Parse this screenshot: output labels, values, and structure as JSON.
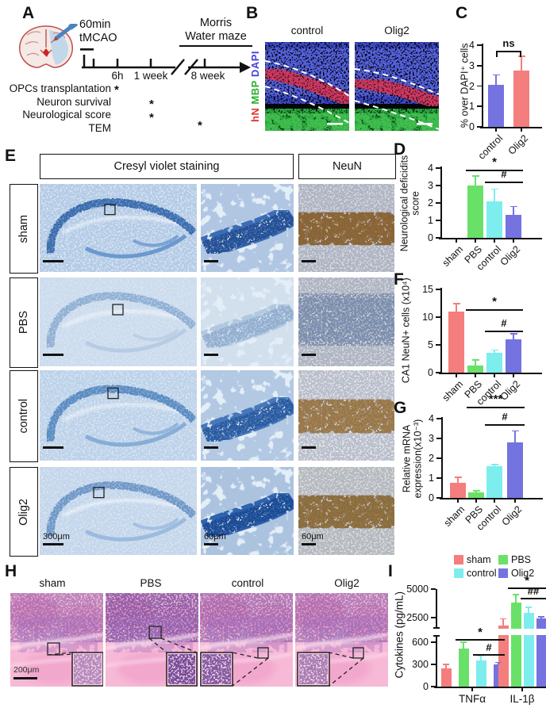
{
  "colors": {
    "sham": "#F47E7E",
    "PBS": "#69E169",
    "control": "#7DEDED",
    "Olig2": "#7473E0",
    "axis": "#111111"
  },
  "panelA": {
    "label": "A",
    "tmcao_line1": "60min",
    "tmcao_line2": "tMCAO",
    "tick6h": "6h",
    "tick1w": "1 week",
    "tick8w": "8 week",
    "maze1": "Morris",
    "maze2": "Water maze",
    "rows": [
      "OPCs transplantation",
      "Neuron survival",
      "Neurological score",
      "TEM"
    ],
    "star": "*"
  },
  "panelB": {
    "label": "B",
    "titles": [
      "control",
      "Olig2"
    ],
    "stains": [
      {
        "text": "hN",
        "color": "#e03535"
      },
      {
        "text": "MBP",
        "color": "#2bb02b"
      },
      {
        "text": "DAPI",
        "color": "#4343dd"
      }
    ]
  },
  "panelE": {
    "label": "E",
    "headers": [
      "Cresyl violet staining",
      "NeuN"
    ],
    "rows": [
      "sham",
      "PBS",
      "control",
      "Olig2"
    ],
    "scalebars": [
      "300μm",
      "60μm",
      "60μm"
    ]
  },
  "panelH": {
    "label": "H",
    "titles": [
      "sham",
      "PBS",
      "control",
      "Olig2"
    ],
    "scalebar": "200μm"
  },
  "panelLabels": {
    "C": "C",
    "D": "D",
    "F": "F",
    "G": "G",
    "I": "I"
  },
  "chart_data": [
    {
      "id": "C",
      "type": "bar",
      "ylabel": [
        "% over DAPI⁺ cells"
      ],
      "ylim": [
        0,
        4
      ],
      "yticks": [
        0,
        1,
        2,
        3,
        4
      ],
      "categories": [
        "control",
        "Olig2"
      ],
      "values": [
        2.05,
        2.75
      ],
      "errors": [
        0.5,
        0.7
      ],
      "colors": [
        "#7473E0",
        "#F47E7E"
      ],
      "sigs": [
        {
          "label": "ns",
          "from": 0,
          "to": 1,
          "bracket": true
        }
      ]
    },
    {
      "id": "D",
      "type": "bar",
      "ylabel": [
        "Neurological deficidits",
        "score"
      ],
      "ylim": [
        0,
        4
      ],
      "yticks": [
        0,
        1,
        2,
        3,
        4
      ],
      "categories": [
        "sham",
        "PBS",
        "control",
        "Olig2"
      ],
      "values": [
        0,
        3.0,
        2.1,
        1.3
      ],
      "errors": [
        0,
        0.55,
        0.7,
        0.5
      ],
      "colors": [
        "#F47E7E",
        "#69E169",
        "#7DEDED",
        "#7473E0"
      ],
      "sigs": [
        {
          "label": "*",
          "from": 1,
          "to": 3
        },
        {
          "label": "#",
          "from": 2,
          "to": 3
        }
      ]
    },
    {
      "id": "F",
      "type": "bar",
      "ylabel": [
        "CA1 NeuN+ cells (x10⁴)"
      ],
      "ylim": [
        0,
        15
      ],
      "yticks": [
        0,
        5,
        10,
        15
      ],
      "categories": [
        "sham",
        "PBS",
        "control",
        "Olig2"
      ],
      "values": [
        11,
        1.3,
        3.6,
        6.0
      ],
      "errors": [
        1.4,
        1.0,
        0.45,
        1.0
      ],
      "colors": [
        "#F47E7E",
        "#69E169",
        "#7DEDED",
        "#7473E0"
      ],
      "sigs": [
        {
          "label": "*",
          "from": 1,
          "to": 3
        },
        {
          "label": "#",
          "from": 2,
          "to": 3
        }
      ]
    },
    {
      "id": "G",
      "type": "bar",
      "ylabel": [
        "Relative mRNA",
        "expression(x10⁻³)"
      ],
      "ylim": [
        0,
        4
      ],
      "yticks": [
        0,
        1,
        2,
        3,
        4
      ],
      "categories": [
        "sham",
        "PBS",
        "control",
        "Olig2"
      ],
      "values": [
        0.78,
        0.28,
        1.6,
        2.8
      ],
      "errors": [
        0.27,
        0.08,
        0.08,
        0.58
      ],
      "colors": [
        "#F47E7E",
        "#69E169",
        "#7DEDED",
        "#7473E0"
      ],
      "sigs": [
        {
          "label": "***",
          "from": 1,
          "to": 3
        },
        {
          "label": "#",
          "from": 2,
          "to": 3
        }
      ]
    },
    {
      "id": "I",
      "type": "grouped-bar-broken-axis",
      "ylabel": [
        "Cytokines (pg/mL)"
      ],
      "groups": [
        "TNFα",
        "IL-1β"
      ],
      "series": [
        "sham",
        "PBS",
        "control",
        "Olig2"
      ],
      "colors": [
        "#F47E7E",
        "#69E169",
        "#7DEDED",
        "#7473E0"
      ],
      "values": [
        [
          245,
          515,
          350,
          295
        ],
        [
          1900,
          3850,
          2900,
          2450
        ]
      ],
      "errors": [
        [
          55,
          85,
          70,
          30
        ],
        [
          500,
          650,
          500,
          100
        ]
      ],
      "axis_lower": {
        "lim": [
          0,
          600
        ],
        "ticks": [
          0,
          300,
          600
        ]
      },
      "axis_upper": {
        "lim": [
          2500,
          5000
        ],
        "ticks": [
          2500,
          5000
        ]
      },
      "legend": [
        {
          "label": "sham",
          "color": "#F47E7E"
        },
        {
          "label": "PBS",
          "color": "#69E169"
        },
        {
          "label": "control",
          "color": "#7DEDED"
        },
        {
          "label": "Olig2",
          "color": "#7473E0"
        }
      ],
      "sigs": [
        [
          {
            "label": "*",
            "from": 1,
            "to": 3
          },
          {
            "label": "#",
            "from": 2,
            "to": 3
          }
        ],
        [
          {
            "label": "*",
            "from": 1,
            "to": 3
          },
          {
            "label": "##",
            "from": 2,
            "to": 3
          }
        ]
      ]
    }
  ]
}
